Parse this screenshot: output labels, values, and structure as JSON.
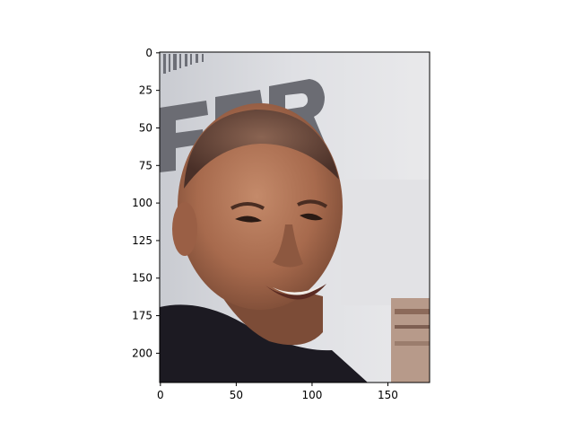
{
  "figure": {
    "background": "#ffffff",
    "axis_color": "#000000"
  },
  "image_panel": {
    "subject": "smiling man with shaved head, dark jacket, light signage with large gray letters behind him",
    "x_ticks": [
      "0",
      "50",
      "100",
      "150"
    ],
    "y_ticks": [
      "0",
      "25",
      "50",
      "75",
      "100",
      "125",
      "150",
      "175",
      "200"
    ]
  },
  "chart_data": {
    "type": "image",
    "xlim": [
      -0.5,
      177.5
    ],
    "ylim": [
      219.5,
      -0.5
    ],
    "x_ticks": [
      0,
      50,
      100,
      150
    ],
    "y_ticks": [
      0,
      25,
      50,
      75,
      100,
      125,
      150,
      175,
      200
    ]
  }
}
